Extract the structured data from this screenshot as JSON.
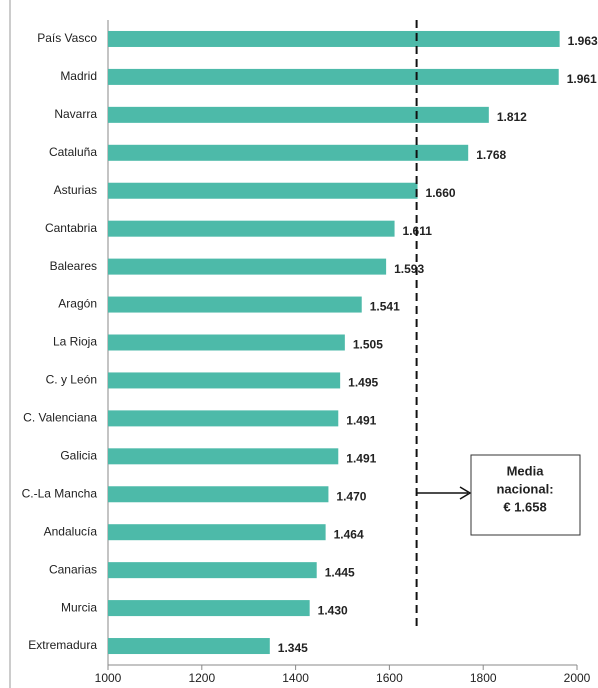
{
  "chart_data": {
    "type": "hbar",
    "categories": [
      "País Vasco",
      "Madrid",
      "Navarra",
      "Cataluña",
      "Asturias",
      "Cantabria",
      "Baleares",
      "Aragón",
      "La Rioja",
      "C. y León",
      "C. Valenciana",
      "Galicia",
      "C.-La Mancha",
      "Andalucía",
      "Canarias",
      "Murcia",
      "Extremadura"
    ],
    "values": [
      1963,
      1961,
      1812,
      1768,
      1660,
      1611,
      1593,
      1541,
      1505,
      1495,
      1491,
      1491,
      1470,
      1464,
      1445,
      1430,
      1345
    ],
    "value_labels": [
      "1.963",
      "1.961",
      "1.812",
      "1.768",
      "1.660",
      "1.611",
      "1.593",
      "1.541",
      "1.505",
      "1.495",
      "1.491",
      "1.491",
      "1.470",
      "1.464",
      "1.445",
      "1.430",
      "1.345"
    ],
    "color": "#4dbaa9",
    "xlim": [
      1000,
      2000
    ],
    "xticks": [
      1000,
      1200,
      1400,
      1600,
      1800,
      2000
    ],
    "reference_line": {
      "value": 1658,
      "label": [
        "Media",
        "nacional:",
        "€ 1.658"
      ]
    }
  }
}
